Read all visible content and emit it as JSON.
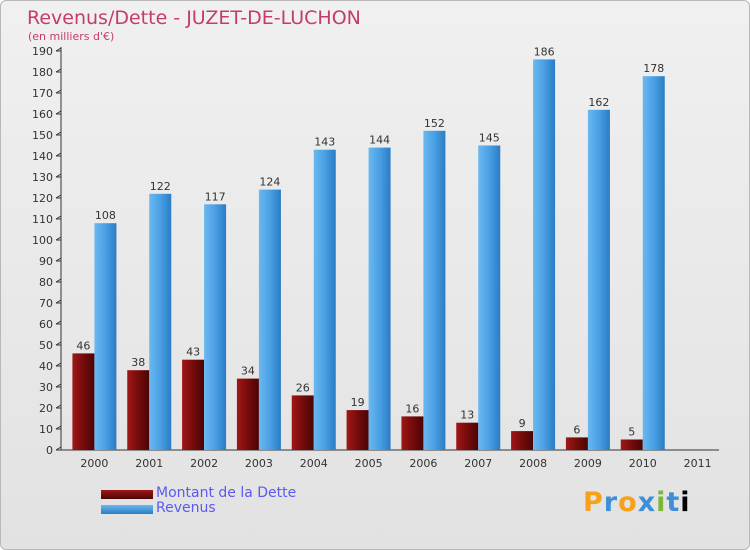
{
  "title": "Revenus/Dette - JUZET-DE-LUCHON",
  "subtitle": "(en milliers d'€)",
  "logo": "Proxiti",
  "chart_data": {
    "type": "bar",
    "categories": [
      "2000",
      "2001",
      "2002",
      "2003",
      "2004",
      "2005",
      "2006",
      "2007",
      "2008",
      "2009",
      "2010",
      "2011"
    ],
    "series": [
      {
        "name": "Montant de la Dette",
        "color": "#6e0a0a",
        "values": [
          46,
          38,
          43,
          34,
          26,
          19,
          16,
          13,
          9,
          6,
          5,
          null
        ]
      },
      {
        "name": "Revenus",
        "color": "#4aa0e4",
        "values": [
          108,
          122,
          117,
          124,
          143,
          144,
          152,
          145,
          186,
          162,
          178,
          null
        ]
      }
    ],
    "ylim": [
      0,
      190
    ],
    "yticks": [
      0,
      10,
      20,
      30,
      40,
      50,
      60,
      70,
      80,
      90,
      100,
      110,
      120,
      130,
      140,
      150,
      160,
      170,
      180,
      190
    ],
    "grid": false,
    "legend": "bottom-left"
  }
}
